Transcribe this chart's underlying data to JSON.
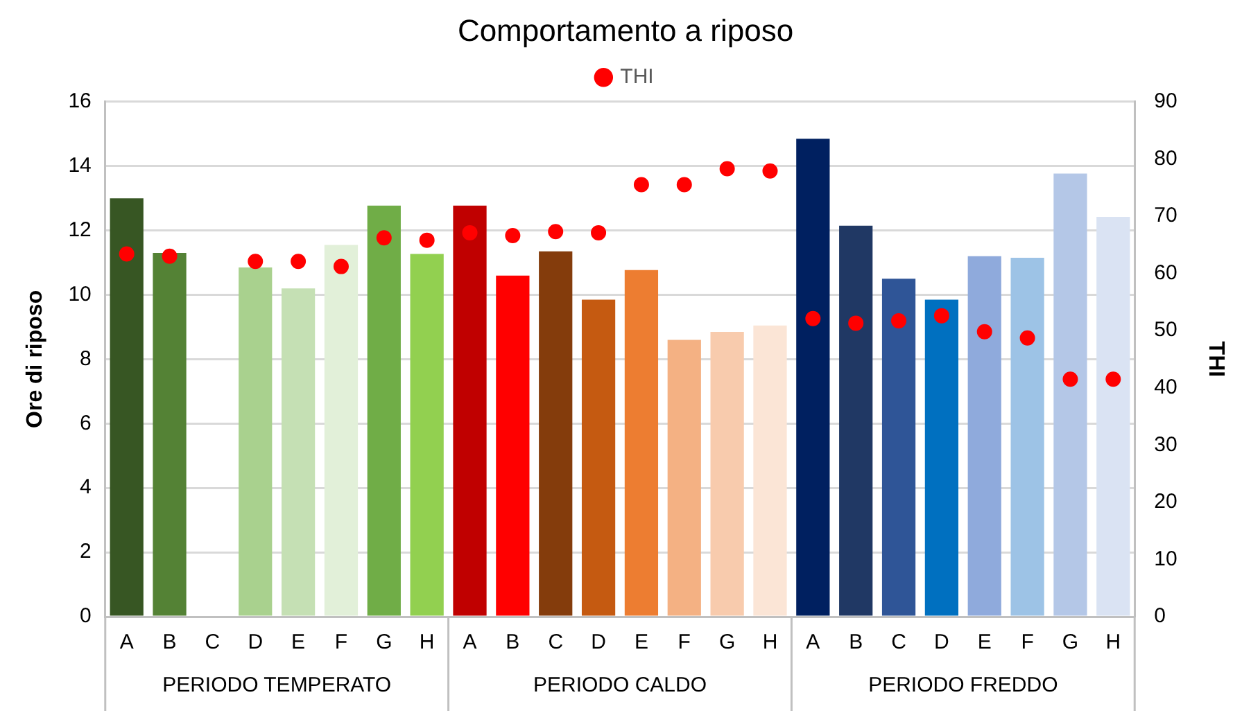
{
  "chart_data": {
    "type": "bar",
    "title": "Comportamento a riposo",
    "ylabel": "Ore di riposo",
    "y2label": "THI",
    "categories": [
      "A",
      "B",
      "C",
      "D",
      "E",
      "F",
      "G",
      "H",
      "A",
      "B",
      "C",
      "D",
      "E",
      "F",
      "G",
      "H",
      "A",
      "B",
      "C",
      "D",
      "E",
      "F",
      "G",
      "H"
    ],
    "series": [
      {
        "colors": [
          "#375623",
          "#548235",
          null,
          "#a9d18e",
          "#c5e0b4",
          "#e2f0d9",
          "#70ad47",
          "#92d050",
          "#c00000",
          "#ff0000",
          "#843c0c",
          "#c55a11",
          "#ed7d31",
          "#f4b183",
          "#f8cbad",
          "#fbe5d6",
          "#002060",
          "#203864",
          "#2f5597",
          "#0070c0",
          "#8faadc",
          "#9dc3e6",
          "#b4c7e7",
          "#dae3f3"
        ],
        "values": [
          13.0,
          11.3,
          null,
          10.85,
          10.2,
          11.55,
          12.77,
          11.27,
          12.77,
          10.6,
          11.35,
          9.85,
          10.77,
          8.6,
          8.85,
          9.05,
          14.85,
          12.15,
          10.5,
          9.85,
          11.2,
          11.15,
          13.77,
          12.42
        ]
      },
      {
        "type": "scatter",
        "name": "THI",
        "color": "#ff0000",
        "axis": "y2",
        "values": [
          63.4,
          63.0,
          null,
          62.1,
          62.1,
          61.2,
          66.2,
          65.8,
          67.1,
          66.6,
          67.3,
          67.1,
          75.5,
          75.5,
          78.3,
          77.9,
          52.1,
          51.3,
          51.7,
          52.6,
          49.8,
          48.7,
          41.5,
          41.5
        ]
      }
    ],
    "annotations": [
      "PERIODO TEMPERATO",
      "PERIODO CALDO",
      "PERIODO FREDDO"
    ],
    "ylim": [
      0,
      16
    ],
    "yticks": [
      0,
      2,
      4,
      6,
      8,
      10,
      12,
      14,
      16
    ],
    "y2lim": [
      0,
      90
    ],
    "y2ticks": [
      0,
      10,
      20,
      30,
      40,
      50,
      60,
      70,
      80,
      90
    ],
    "grid": "y",
    "legend": "top",
    "marker": "circle"
  }
}
